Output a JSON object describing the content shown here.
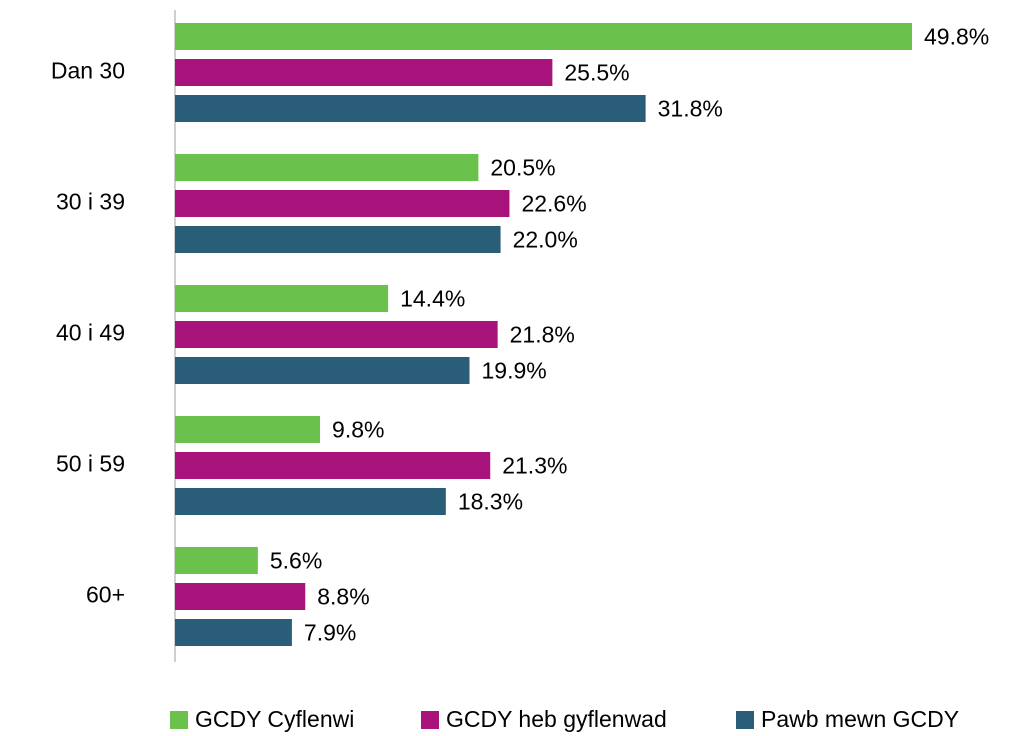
{
  "chart_data": {
    "type": "hbar",
    "categories": [
      "Dan 30",
      "30 i 39",
      "40 i 49",
      "50 i 59",
      "60+"
    ],
    "series": [
      {
        "name": "GCDY Cyflenwi",
        "color": "#6ac24c",
        "values": [
          49.8,
          20.5,
          14.4,
          9.8,
          5.6
        ],
        "value_labels": [
          "49.8%",
          "20.5%",
          "14.4%",
          "9.8%",
          "5.6%"
        ]
      },
      {
        "name": "GCDY heb gyflenwad",
        "color": "#a8127b",
        "values": [
          25.5,
          22.6,
          21.8,
          21.3,
          8.8
        ],
        "value_labels": [
          "25.5%",
          "22.6%",
          "21.8%",
          "21.3%",
          "8.8%"
        ]
      },
      {
        "name": "Pawb mewn GCDY",
        "color": "#2a5e78",
        "values": [
          31.8,
          22.0,
          19.9,
          18.3,
          7.9
        ],
        "value_labels": [
          "31.8%",
          "22.0%",
          "19.9%",
          "18.3%",
          "7.9%"
        ]
      }
    ],
    "legend": "bottom"
  }
}
